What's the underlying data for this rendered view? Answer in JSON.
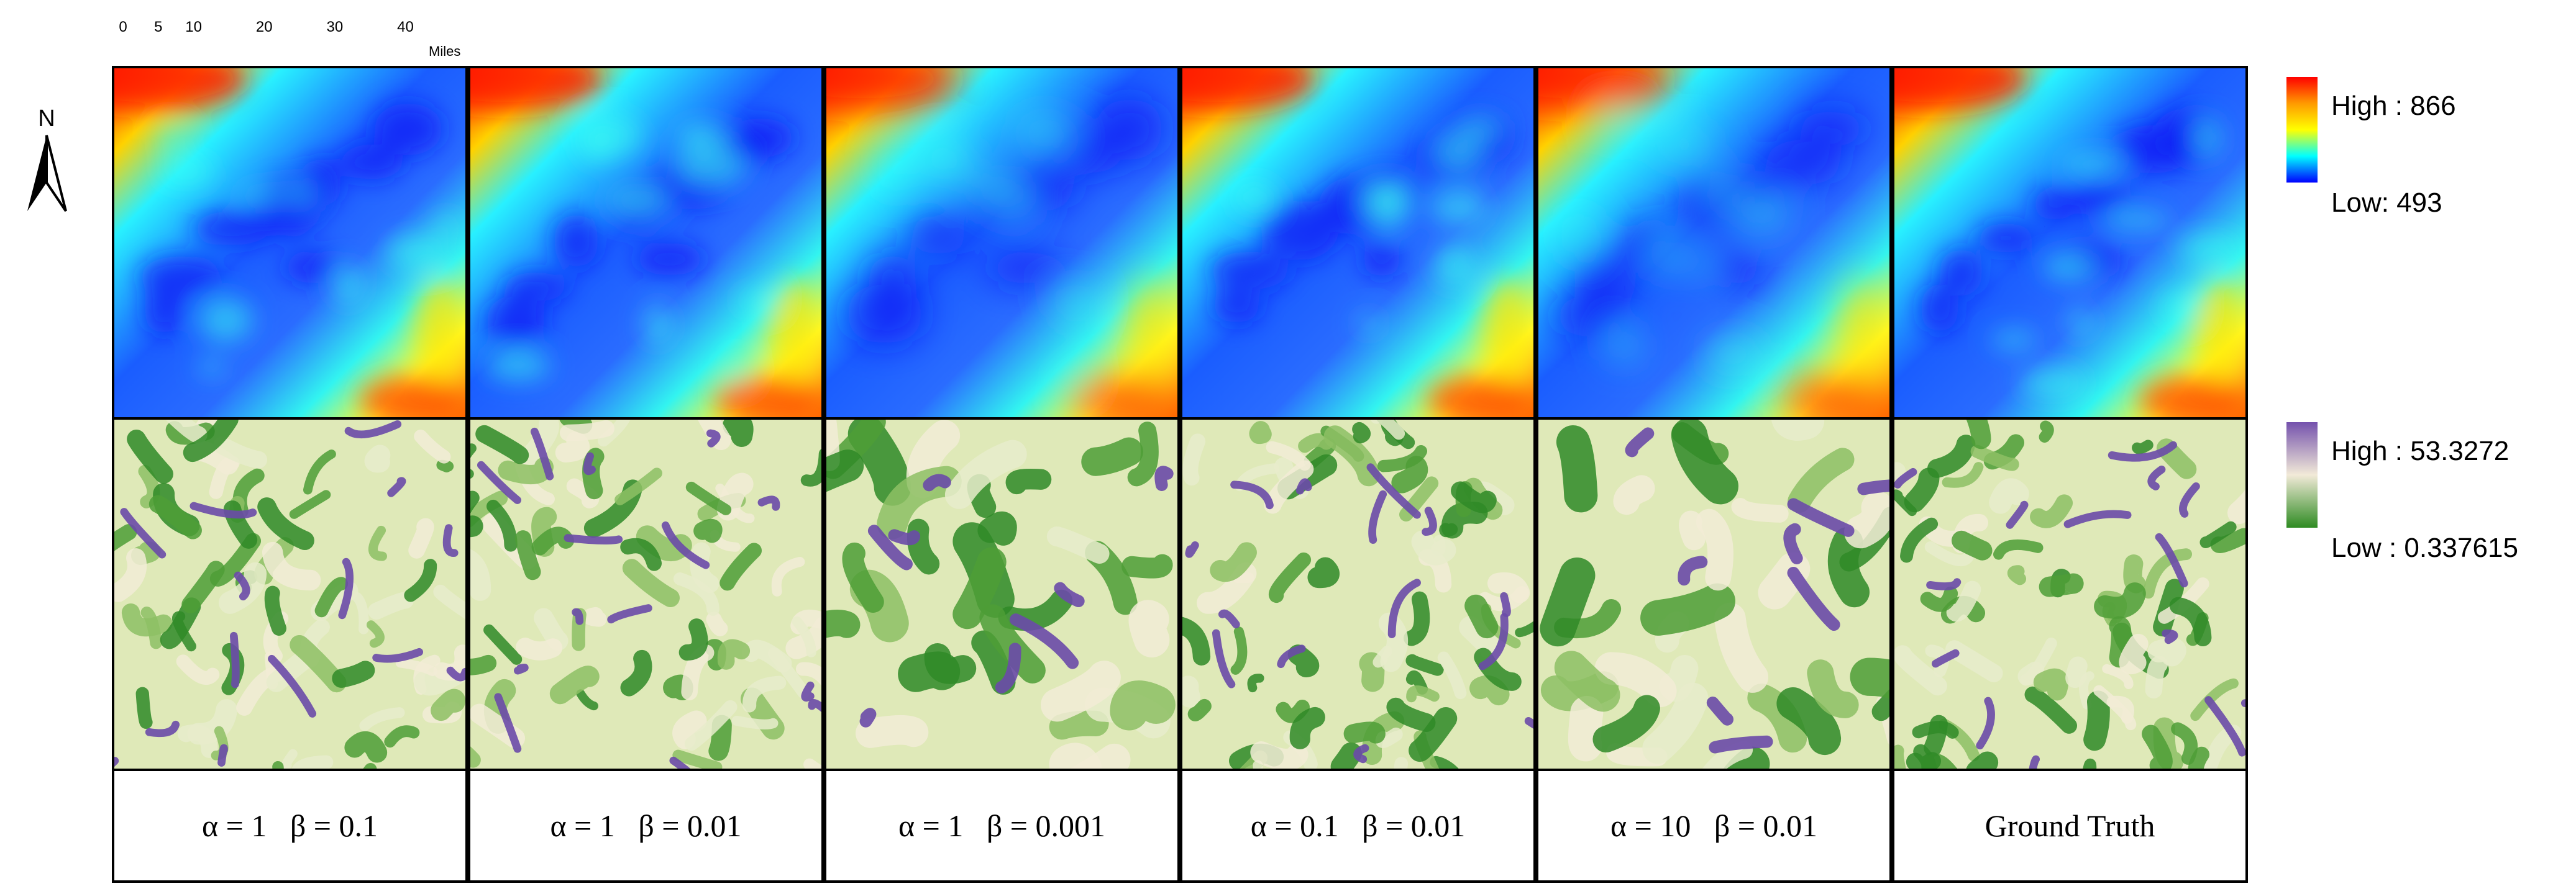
{
  "scale_bar": {
    "ticks": [
      "0",
      "5",
      "10",
      "20",
      "30",
      "40"
    ],
    "tick_miles": [
      0,
      5,
      10,
      20,
      30,
      40
    ],
    "max_miles": 44,
    "units": "Miles"
  },
  "north_arrow": {
    "letter": "N"
  },
  "panels": [
    {
      "label": "α = 1   β = 0.1"
    },
    {
      "label": "α = 1   β = 0.01"
    },
    {
      "label": "α = 1   β = 0.001"
    },
    {
      "label": "α = 0.1   β = 0.01"
    },
    {
      "label": "α = 10   β = 0.01"
    },
    {
      "label": "Ground Truth"
    }
  ],
  "legends": {
    "elevation": {
      "high": "High : 866",
      "low": "Low: 493",
      "colors": [
        "#ff0000",
        "#ff9a00",
        "#ffff00",
        "#00ffff",
        "#0000ff"
      ]
    },
    "slope": {
      "high": "High : 53.3272",
      "low": "Low : 0.337615",
      "colors": [
        "#7451ad",
        "#f2ead8",
        "#2e8b22"
      ]
    }
  }
}
